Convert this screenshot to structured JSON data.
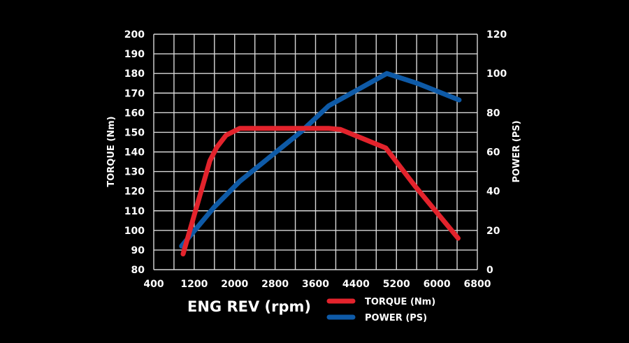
{
  "chart_data": {
    "type": "line",
    "title": "",
    "xlabel": "ENG REV (rpm)",
    "ylabel": "TORQUE (Nm)",
    "y2label": "POWER (PS)",
    "xlim": [
      400,
      6800
    ],
    "ylim": [
      80,
      200
    ],
    "y2lim": [
      0,
      120
    ],
    "x_ticks": [
      400,
      1200,
      2000,
      2800,
      3600,
      4400,
      5200,
      6000,
      6800
    ],
    "y_ticks": [
      80,
      90,
      100,
      110,
      120,
      130,
      140,
      150,
      160,
      170,
      180,
      190,
      200
    ],
    "y2_ticks": [
      0,
      20,
      40,
      60,
      80,
      100,
      120
    ],
    "grid": true,
    "grid_x_step": 400,
    "grid_y_step": 10,
    "legend_placement": "bottom",
    "series": [
      {
        "name": "TORQUE (Nm)",
        "axis": "left",
        "color": "#e3232c",
        "x": [
          980,
          1510,
          1650,
          1830,
          2100,
          3860,
          4090,
          4990,
          5570,
          6420
        ],
        "y": [
          88,
          135.5,
          142.5,
          148.5,
          152,
          152,
          151.5,
          142,
          122.5,
          96
        ]
      },
      {
        "name": "POWER (PS)",
        "axis": "right",
        "color": "#0e5aa7",
        "x": [
          950,
          1600,
          2100,
          3300,
          3860,
          5010,
          5610,
          6440
        ],
        "y": [
          12,
          32,
          45,
          70,
          83.5,
          100,
          95,
          86.5
        ]
      }
    ]
  }
}
